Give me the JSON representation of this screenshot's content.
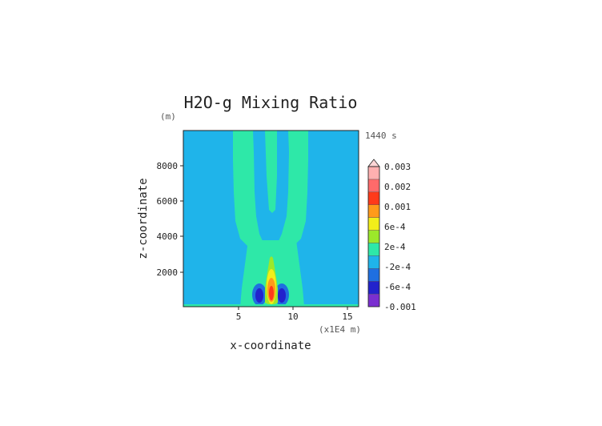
{
  "chart_data": {
    "type": "heatmap",
    "title": "H2O-g Mixing Ratio",
    "xlabel": "x-coordinate",
    "ylabel": "z-coordinate",
    "x_unit_note": "(x1E4 m)",
    "y_unit_note": "(m)",
    "time_label": "1440 s",
    "xlim": [
      0,
      16
    ],
    "ylim": [
      0,
      9800
    ],
    "x_ticks": [
      "5",
      "10",
      "15"
    ],
    "y_ticks": [
      "2000",
      "4000",
      "6000",
      "8000"
    ],
    "colorbar": {
      "levels": [
        -0.001,
        -0.0006,
        -0.0002,
        0.0002,
        0.0006,
        0.001,
        0.002,
        0.003
      ],
      "tick_labels": [
        "0.003",
        "0.002",
        "0.001",
        "6e-4",
        "2e-4",
        "-2e-4",
        "-6e-4",
        "-0.001"
      ],
      "colors": [
        "#7a2fd0",
        "#2222cc",
        "#1f6fe0",
        "#1fb4ea",
        "#2ee8a8",
        "#9ce82a",
        "#f2ee1a",
        "#ff9a1a",
        "#ff3a1a",
        "#ff6a6a",
        "#ffb0b0"
      ]
    },
    "field_description": "Smooth background near zero; a central vertical plume of positive values rising from the surface at x≈8 and splitting into two branches aloft; strong maximum near x≈8, z≈1000 and two negative lobes at x≈7.2 and x≈9 near the surface.",
    "field_levels": {
      "background": "-2e-4 to 2e-4",
      "plume": "2e-4 to 6e-4",
      "core": "> 0.002",
      "negative_lobes": "-6e-4 to -0.001"
    }
  }
}
